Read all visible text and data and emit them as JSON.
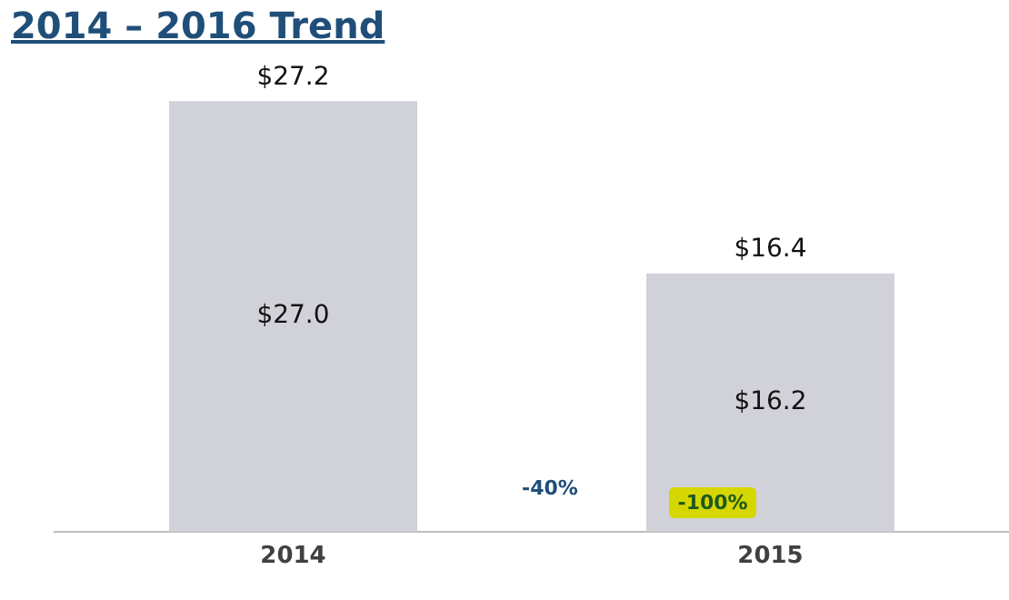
{
  "chart_data": {
    "type": "bar",
    "title": "2014 – 2016 Trend",
    "categories": [
      "2014",
      "2015"
    ],
    "series": [
      {
        "color": "#d1d1d9",
        "values": [
          27.0,
          16.2
        ],
        "value_labels": [
          "$27.0",
          "$16.2"
        ]
      }
    ],
    "annotations": [
      {
        "text": "$27.2",
        "x": "2014",
        "y": 27.2
      },
      {
        "text": "$16.4",
        "x": "2015",
        "y": 16.4
      },
      "-40%",
      "-100%"
    ],
    "legend": false,
    "grid": false,
    "tick_labels": "x"
  }
}
